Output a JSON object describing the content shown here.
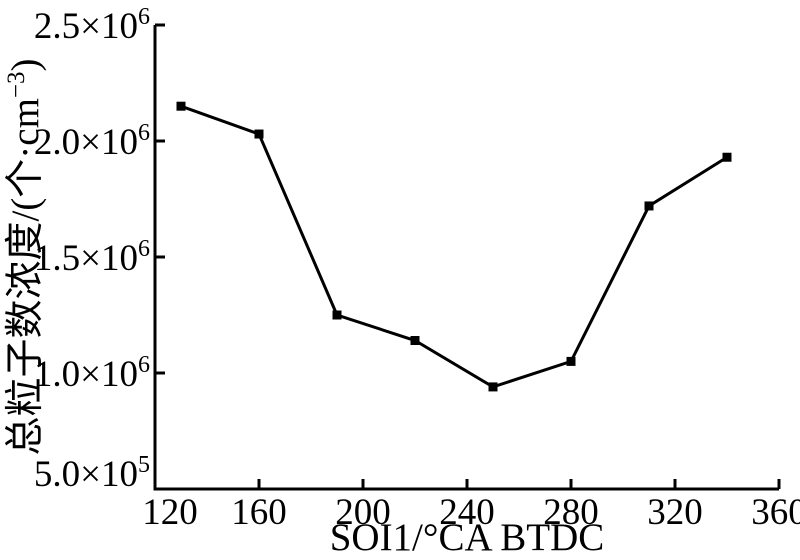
{
  "figure": {
    "background_color": "#ffffff",
    "foreground_color": "#000000"
  },
  "chart_data": {
    "type": "line",
    "xlabel": "SOI1/°CA BTDC",
    "ylabel": "总粒子数浓度/(个·cm⁻³)",
    "ylabel_parts": {
      "prefix": "总粒子数浓度/(个·cm",
      "sup": "−3",
      "suffix": ")"
    },
    "x": [
      130,
      160,
      190,
      220,
      250,
      280,
      310,
      340
    ],
    "y": [
      2150000,
      2030000,
      1250000,
      1140000,
      940000,
      1050000,
      1720000,
      1930000
    ],
    "xlim": [
      120,
      360
    ],
    "ylim": [
      500000,
      2500000
    ],
    "x_ticks": [
      120,
      160,
      200,
      240,
      280,
      320,
      360
    ],
    "x_tick_labels": [
      "120",
      "160",
      "200",
      "240",
      "280",
      "320",
      "360"
    ],
    "y_ticks": [
      {
        "value": 500000,
        "mantissa": "5.0",
        "times": "×10",
        "exponent": "5"
      },
      {
        "value": 1000000,
        "mantissa": "1.0",
        "times": "×10",
        "exponent": "6"
      },
      {
        "value": 1500000,
        "mantissa": "1.5",
        "times": "×10",
        "exponent": "6"
      },
      {
        "value": 2000000,
        "mantissa": "2.0",
        "times": "×10",
        "exponent": "6"
      },
      {
        "value": 2500000,
        "mantissa": "2.5",
        "times": "×10",
        "exponent": "6"
      }
    ],
    "grid": false,
    "legend": "none",
    "marker": "square",
    "line_color": "#000000",
    "marker_color": "#000000"
  }
}
